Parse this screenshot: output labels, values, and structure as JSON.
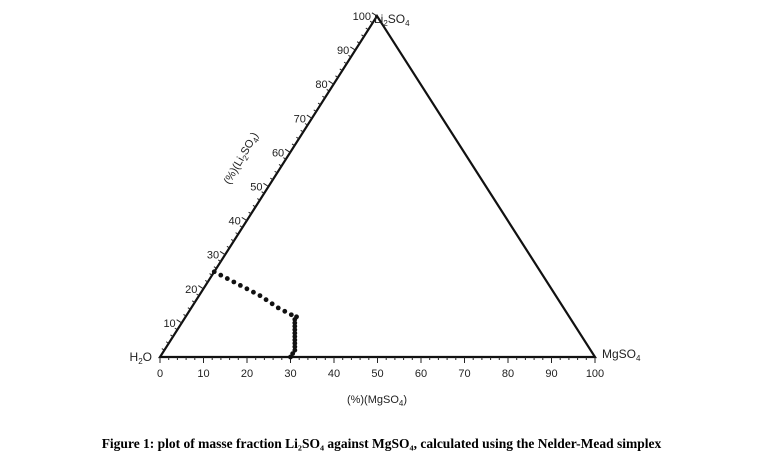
{
  "chart_data": {
    "type": "scatter",
    "subtype": "ternary",
    "corners": {
      "bottom_left": "H2O",
      "bottom_right": "MgSO4",
      "top": "Li2SO4"
    },
    "axes": {
      "bottom": {
        "label": "(%)(MgSO4)",
        "range": [
          0,
          100
        ],
        "ticks": [
          0,
          10,
          20,
          30,
          40,
          50,
          60,
          70,
          80,
          90,
          100
        ]
      },
      "left": {
        "label": "(%)(Li2SO4)",
        "range": [
          0,
          100
        ],
        "ticks": [
          10,
          20,
          30,
          40,
          50,
          60,
          70,
          80,
          90,
          100
        ]
      }
    },
    "grid": false,
    "series": [
      {
        "points": [
          {
            "mgso4": 0.0,
            "li2so4": 25.0
          },
          {
            "mgso4": 2.0,
            "li2so4": 24.0
          },
          {
            "mgso4": 4.0,
            "li2so4": 23.0
          },
          {
            "mgso4": 6.0,
            "li2so4": 22.0
          },
          {
            "mgso4": 8.0,
            "li2so4": 21.0
          },
          {
            "mgso4": 10.0,
            "li2so4": 20.0
          },
          {
            "mgso4": 12.0,
            "li2so4": 19.0
          },
          {
            "mgso4": 14.0,
            "li2so4": 18.0
          },
          {
            "mgso4": 16.0,
            "li2so4": 16.8
          },
          {
            "mgso4": 18.0,
            "li2so4": 15.6
          },
          {
            "mgso4": 20.0,
            "li2so4": 14.4
          },
          {
            "mgso4": 22.0,
            "li2so4": 13.4
          },
          {
            "mgso4": 24.0,
            "li2so4": 12.4
          },
          {
            "mgso4": 25.5,
            "li2so4": 11.8
          },
          {
            "mgso4": 25.5,
            "li2so4": 11.0
          },
          {
            "mgso4": 26.0,
            "li2so4": 10.0
          },
          {
            "mgso4": 26.5,
            "li2so4": 9.0
          },
          {
            "mgso4": 27.0,
            "li2so4": 8.0
          },
          {
            "mgso4": 27.5,
            "li2so4": 7.0
          },
          {
            "mgso4": 28.0,
            "li2so4": 6.0
          },
          {
            "mgso4": 28.5,
            "li2so4": 5.0
          },
          {
            "mgso4": 29.0,
            "li2so4": 4.0
          },
          {
            "mgso4": 29.5,
            "li2so4": 3.0
          },
          {
            "mgso4": 30.0,
            "li2so4": 2.0
          },
          {
            "mgso4": 30.0,
            "li2so4": 1.0
          },
          {
            "mgso4": 30.0,
            "li2so4": 0.0
          }
        ]
      }
    ]
  },
  "caption": "Figure 1: plot of masse fraction Li₂SO₄ against MgSO₄, calculated using the Nelder-Mead simplex"
}
